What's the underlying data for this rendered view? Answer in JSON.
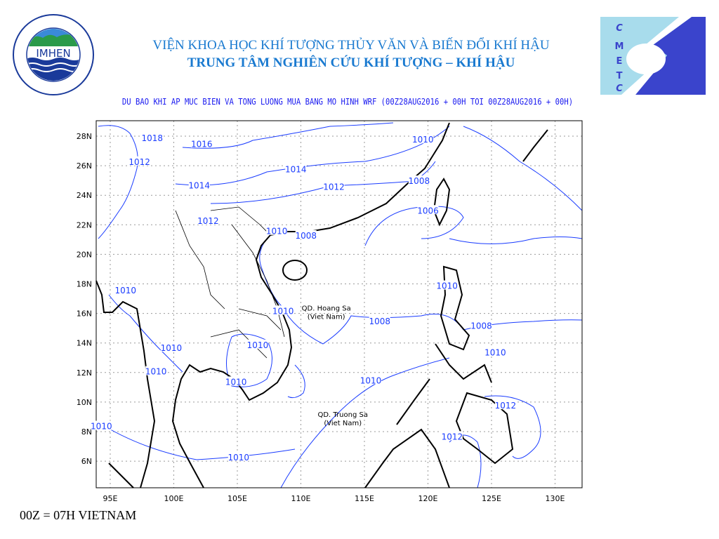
{
  "header": {
    "title_line1": "VIỆN KHOA HỌC KHÍ TƯỢNG THỦY VĂN VÀ BIẾN ĐỔI KHÍ HẬU",
    "title_line2": "TRUNG TÂM NGHIÊN CỨU KHÍ TƯỢNG – KHÍ HẬU",
    "subtitle": "DU BAO KHI AP MUC BIEN VA TONG LUONG MUA BANG MO HINH WRF (00Z28AUG2016 + 00H TOI 00Z28AUG2016 + 00H)"
  },
  "logos": {
    "left": {
      "name": "IMHEN",
      "ring_text": "VIEN KHOA HOC KHI TUONG THUY VAN VA BIEN DOI KHI HAU"
    },
    "right": {
      "name": "CMETC",
      "letters": [
        "C",
        "M",
        "E",
        "T",
        "C"
      ]
    }
  },
  "footer": {
    "note": "00Z = 07H VIETNAM"
  },
  "map": {
    "colors": {
      "contour": "#1a3cff",
      "coast": "#000000",
      "grid": "#9a9a9a"
    },
    "lon_ticks": [
      "95E",
      "100E",
      "105E",
      "110E",
      "115E",
      "120E",
      "125E",
      "130E"
    ],
    "lat_ticks": [
      "28N",
      "26N",
      "24N",
      "22N",
      "20N",
      "18N",
      "16N",
      "14N",
      "12N",
      "10N",
      "8N",
      "6N"
    ],
    "place_labels": [
      {
        "line1": "QD. Hoang Sa",
        "line2": "(Viet Nam)",
        "lon": 112.0,
        "lat": 16.2
      },
      {
        "line1": "QD. Truong Sa",
        "line2": "(Viet Nam)",
        "lon": 113.3,
        "lat": 9.0
      }
    ],
    "contour_labels": [
      {
        "v": "1018",
        "lon": 98.3,
        "lat": 27.9
      },
      {
        "v": "1016",
        "lon": 102.2,
        "lat": 27.5
      },
      {
        "v": "1012",
        "lon": 97.3,
        "lat": 26.3
      },
      {
        "v": "1014",
        "lon": 109.6,
        "lat": 25.8
      },
      {
        "v": "1010",
        "lon": 119.6,
        "lat": 27.8
      },
      {
        "v": "1012",
        "lon": 112.6,
        "lat": 24.6
      },
      {
        "v": "1014",
        "lon": 102.0,
        "lat": 24.7
      },
      {
        "v": "1008",
        "lon": 119.3,
        "lat": 25.0
      },
      {
        "v": "1006",
        "lon": 120.0,
        "lat": 23.0
      },
      {
        "v": "1012",
        "lon": 102.7,
        "lat": 22.3
      },
      {
        "v": "1010",
        "lon": 108.1,
        "lat": 21.6
      },
      {
        "v": "1008",
        "lon": 110.4,
        "lat": 21.3
      },
      {
        "v": "1010",
        "lon": 96.2,
        "lat": 17.6
      },
      {
        "v": "1010",
        "lon": 121.5,
        "lat": 17.9
      },
      {
        "v": "1010",
        "lon": 108.6,
        "lat": 16.2
      },
      {
        "v": "1008",
        "lon": 116.2,
        "lat": 15.5
      },
      {
        "v": "1008",
        "lon": 124.2,
        "lat": 15.2
      },
      {
        "v": "1010",
        "lon": 99.8,
        "lat": 13.7
      },
      {
        "v": "1010",
        "lon": 106.6,
        "lat": 13.9
      },
      {
        "v": "1010",
        "lon": 125.3,
        "lat": 13.4
      },
      {
        "v": "1010",
        "lon": 98.6,
        "lat": 12.1
      },
      {
        "v": "1010",
        "lon": 104.9,
        "lat": 11.4
      },
      {
        "v": "1010",
        "lon": 115.5,
        "lat": 11.5
      },
      {
        "v": "1012",
        "lon": 126.1,
        "lat": 9.8
      },
      {
        "v": "1010",
        "lon": 94.3,
        "lat": 8.4
      },
      {
        "v": "1012",
        "lon": 121.9,
        "lat": 7.7
      },
      {
        "v": "1010",
        "lon": 105.1,
        "lat": 6.3
      }
    ]
  }
}
